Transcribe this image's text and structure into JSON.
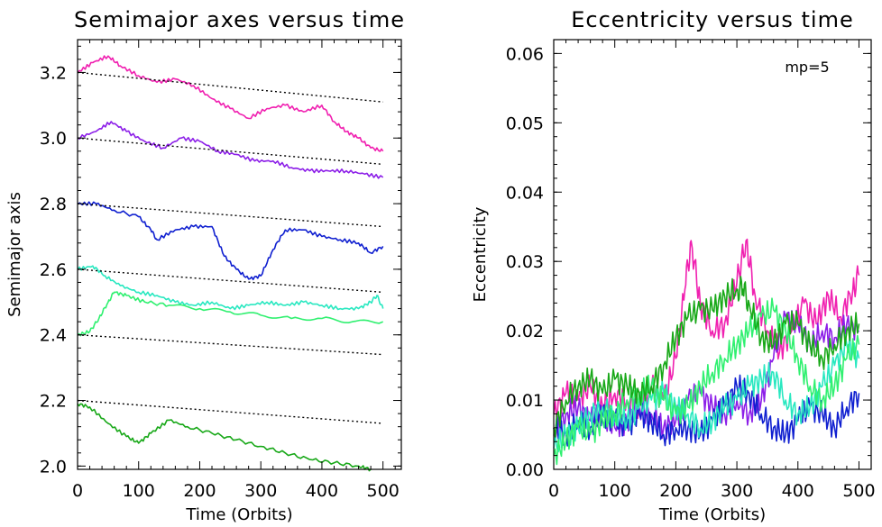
{
  "colors": {
    "magenta": "#f020b0",
    "purple": "#8c1ee8",
    "blue": "#1020d0",
    "teal": "#28e8c0",
    "lightgreen": "#30f070",
    "green": "#18a818",
    "reference_line": "#000000"
  },
  "chart_data": [
    {
      "type": "line",
      "title": "Semimajor axes versus time",
      "xlabel": "Time (Orbits)",
      "ylabel": "Semimajor axis",
      "xlim": [
        0,
        530
      ],
      "ylim": [
        1.99,
        3.3
      ],
      "xticks": [
        0,
        100,
        200,
        300,
        400,
        500
      ],
      "xticklabels": [
        "0",
        "100",
        "200",
        "300",
        "400",
        "500"
      ],
      "yticks": [
        2.0,
        2.2,
        2.4,
        2.6,
        2.8,
        3.0,
        3.2
      ],
      "yticklabels": [
        "2.0",
        "2.2",
        "2.4",
        "2.6",
        "2.8",
        "3.0",
        "3.2"
      ],
      "grid": false,
      "series": [
        {
          "color": "magenta",
          "style": "solid",
          "x": [
            0,
            25,
            50,
            70,
            100,
            130,
            160,
            190,
            220,
            250,
            280,
            310,
            340,
            370,
            400,
            420,
            440,
            460,
            480,
            500
          ],
          "y": [
            3.2,
            3.23,
            3.25,
            3.22,
            3.19,
            3.17,
            3.18,
            3.16,
            3.12,
            3.09,
            3.06,
            3.09,
            3.1,
            3.08,
            3.1,
            3.05,
            3.02,
            3.0,
            2.97,
            2.96
          ]
        },
        {
          "color": "purple",
          "style": "solid",
          "x": [
            0,
            30,
            55,
            80,
            110,
            140,
            170,
            200,
            230,
            260,
            290,
            320,
            350,
            380,
            410,
            440,
            470,
            500
          ],
          "y": [
            3.0,
            3.02,
            3.05,
            3.02,
            2.99,
            2.97,
            3.0,
            2.99,
            2.96,
            2.95,
            2.93,
            2.93,
            2.91,
            2.9,
            2.9,
            2.9,
            2.89,
            2.88
          ]
        },
        {
          "color": "blue",
          "style": "solid",
          "x": [
            0,
            30,
            60,
            100,
            120,
            130,
            160,
            190,
            220,
            240,
            260,
            280,
            300,
            320,
            340,
            370,
            400,
            430,
            460,
            480,
            500
          ],
          "y": [
            2.8,
            2.8,
            2.78,
            2.76,
            2.72,
            2.69,
            2.72,
            2.73,
            2.73,
            2.64,
            2.6,
            2.57,
            2.58,
            2.66,
            2.72,
            2.72,
            2.7,
            2.69,
            2.68,
            2.65,
            2.67
          ]
        },
        {
          "color": "teal",
          "style": "solid",
          "x": [
            0,
            25,
            45,
            70,
            100,
            130,
            160,
            190,
            220,
            250,
            280,
            310,
            340,
            370,
            400,
            430,
            460,
            480,
            490,
            500
          ],
          "y": [
            2.6,
            2.61,
            2.58,
            2.55,
            2.53,
            2.52,
            2.5,
            2.49,
            2.5,
            2.48,
            2.49,
            2.5,
            2.49,
            2.5,
            2.49,
            2.48,
            2.48,
            2.5,
            2.52,
            2.48
          ]
        },
        {
          "color": "lightgreen",
          "style": "solid",
          "x": [
            0,
            20,
            35,
            50,
            60,
            80,
            110,
            150,
            200,
            250,
            300,
            350,
            400,
            450,
            500
          ],
          "y": [
            2.4,
            2.41,
            2.45,
            2.5,
            2.53,
            2.52,
            2.5,
            2.49,
            2.48,
            2.47,
            2.46,
            2.45,
            2.45,
            2.44,
            2.44
          ]
        },
        {
          "color": "green",
          "style": "solid",
          "x": [
            0,
            20,
            50,
            80,
            100,
            120,
            150,
            180,
            220,
            260,
            300,
            340,
            380,
            420,
            460,
            480
          ],
          "y": [
            2.19,
            2.18,
            2.13,
            2.09,
            2.07,
            2.1,
            2.14,
            2.12,
            2.1,
            2.08,
            2.06,
            2.04,
            2.02,
            2.01,
            2.0,
            1.99
          ]
        },
        {
          "color": "reference_line",
          "style": "dotted",
          "x": [
            0,
            500
          ],
          "y": [
            3.2,
            3.11
          ]
        },
        {
          "color": "reference_line",
          "style": "dotted",
          "x": [
            0,
            500
          ],
          "y": [
            3.0,
            2.92
          ]
        },
        {
          "color": "reference_line",
          "style": "dotted",
          "x": [
            0,
            500
          ],
          "y": [
            2.8,
            2.73
          ]
        },
        {
          "color": "reference_line",
          "style": "dotted",
          "x": [
            0,
            500
          ],
          "y": [
            2.6,
            2.53
          ]
        },
        {
          "color": "reference_line",
          "style": "dotted",
          "x": [
            0,
            500
          ],
          "y": [
            2.4,
            2.34
          ]
        },
        {
          "color": "reference_line",
          "style": "dotted",
          "x": [
            0,
            500
          ],
          "y": [
            2.2,
            2.13
          ]
        }
      ]
    },
    {
      "type": "line",
      "title": "Eccentricity versus time",
      "xlabel": "Time (Orbits)",
      "ylabel": "Eccentricity",
      "xlim": [
        0,
        520
      ],
      "ylim": [
        0,
        0.062
      ],
      "xticks": [
        0,
        100,
        200,
        300,
        400,
        500
      ],
      "xticklabels": [
        "0",
        "100",
        "200",
        "300",
        "400",
        "500"
      ],
      "yticks": [
        0.0,
        0.01,
        0.02,
        0.03,
        0.04,
        0.05,
        0.06
      ],
      "yticklabels": [
        "0.00",
        "0.01",
        "0.02",
        "0.03",
        "0.04",
        "0.05",
        "0.06"
      ],
      "annotation": "mp=5",
      "grid": false,
      "series": [
        {
          "color": "magenta",
          "style": "solid",
          "x": [
            0,
            20,
            40,
            60,
            80,
            100,
            120,
            140,
            160,
            180,
            200,
            215,
            225,
            240,
            260,
            280,
            300,
            315,
            330,
            350,
            370,
            390,
            410,
            430,
            450,
            470,
            490,
            500
          ],
          "y": [
            0.008,
            0.011,
            0.01,
            0.012,
            0.009,
            0.011,
            0.01,
            0.009,
            0.012,
            0.01,
            0.016,
            0.026,
            0.033,
            0.024,
            0.02,
            0.021,
            0.027,
            0.033,
            0.025,
            0.02,
            0.017,
            0.02,
            0.024,
            0.021,
            0.025,
            0.022,
            0.026,
            0.028
          ]
        },
        {
          "color": "purple",
          "style": "solid",
          "x": [
            0,
            20,
            40,
            60,
            80,
            100,
            120,
            140,
            160,
            180,
            200,
            220,
            240,
            260,
            280,
            300,
            320,
            340,
            360,
            380,
            400,
            420,
            440,
            460,
            480,
            500
          ],
          "y": [
            0.005,
            0.008,
            0.009,
            0.007,
            0.008,
            0.006,
            0.007,
            0.009,
            0.008,
            0.006,
            0.007,
            0.01,
            0.011,
            0.009,
            0.008,
            0.01,
            0.008,
            0.01,
            0.016,
            0.022,
            0.021,
            0.018,
            0.02,
            0.019,
            0.021,
            0.02
          ]
        },
        {
          "color": "blue",
          "style": "solid",
          "x": [
            0,
            20,
            40,
            60,
            80,
            100,
            120,
            140,
            160,
            180,
            200,
            220,
            240,
            260,
            280,
            300,
            320,
            340,
            360,
            380,
            400,
            420,
            440,
            460,
            480,
            500
          ],
          "y": [
            0.006,
            0.005,
            0.007,
            0.006,
            0.008,
            0.007,
            0.006,
            0.008,
            0.007,
            0.005,
            0.006,
            0.006,
            0.005,
            0.007,
            0.009,
            0.012,
            0.011,
            0.008,
            0.006,
            0.005,
            0.007,
            0.009,
            0.008,
            0.006,
            0.009,
            0.011
          ]
        },
        {
          "color": "teal",
          "style": "solid",
          "x": [
            0,
            20,
            40,
            60,
            80,
            100,
            120,
            140,
            160,
            180,
            200,
            220,
            240,
            260,
            280,
            300,
            320,
            340,
            360,
            380,
            400,
            420,
            440,
            460,
            480,
            500
          ],
          "y": [
            0.003,
            0.005,
            0.006,
            0.008,
            0.009,
            0.008,
            0.007,
            0.009,
            0.01,
            0.011,
            0.009,
            0.008,
            0.006,
            0.007,
            0.009,
            0.01,
            0.012,
            0.013,
            0.014,
            0.01,
            0.008,
            0.009,
            0.012,
            0.015,
            0.018,
            0.016
          ]
        },
        {
          "color": "lightgreen",
          "style": "solid",
          "x": [
            0,
            20,
            40,
            60,
            80,
            100,
            120,
            140,
            160,
            180,
            200,
            220,
            240,
            260,
            280,
            300,
            320,
            340,
            360,
            380,
            400,
            420,
            440,
            460,
            480,
            500
          ],
          "y": [
            0.002,
            0.004,
            0.006,
            0.005,
            0.007,
            0.008,
            0.01,
            0.011,
            0.012,
            0.01,
            0.008,
            0.009,
            0.012,
            0.014,
            0.016,
            0.018,
            0.02,
            0.022,
            0.023,
            0.02,
            0.016,
            0.012,
            0.01,
            0.012,
            0.016,
            0.018
          ]
        },
        {
          "color": "green",
          "style": "solid",
          "x": [
            0,
            20,
            40,
            60,
            80,
            100,
            120,
            140,
            160,
            180,
            200,
            220,
            240,
            260,
            280,
            300,
            310,
            320,
            340,
            360,
            380,
            400,
            420,
            440,
            460,
            480,
            500
          ],
          "y": [
            0.006,
            0.01,
            0.012,
            0.013,
            0.011,
            0.013,
            0.012,
            0.011,
            0.012,
            0.015,
            0.019,
            0.022,
            0.023,
            0.023,
            0.025,
            0.026,
            0.026,
            0.024,
            0.019,
            0.018,
            0.021,
            0.021,
            0.018,
            0.016,
            0.018,
            0.02,
            0.021
          ]
        }
      ]
    }
  ]
}
